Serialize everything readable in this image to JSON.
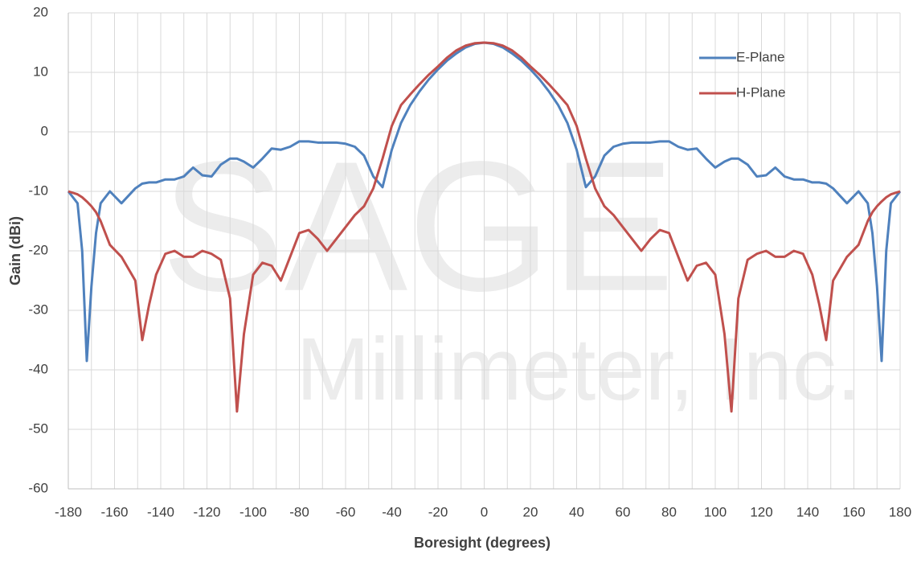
{
  "chart_data": {
    "type": "line",
    "xlabel": "Boresight (degrees)",
    "ylabel": "Gain (dBi)",
    "watermark": [
      "SAGE",
      "Millimeter, Inc."
    ],
    "x": [
      -180,
      -176,
      -174,
      -172,
      -170,
      -168,
      -166,
      -162,
      -157,
      -151,
      -148,
      -145,
      -142,
      -138,
      -134,
      -130,
      -126,
      -122,
      -118,
      -114,
      -110,
      -107,
      -104,
      -100,
      -96,
      -92,
      -88,
      -84,
      -80,
      -76,
      -72,
      -68,
      -64,
      -60,
      -56,
      -52,
      -48,
      -44,
      -40,
      -36,
      -32,
      -28,
      -24,
      -20,
      -16,
      -12,
      -8,
      -4,
      0,
      4,
      8,
      12,
      16,
      20,
      24,
      28,
      32,
      36,
      40,
      44,
      48,
      52,
      56,
      60,
      64,
      68,
      72,
      76,
      80,
      84,
      88,
      92,
      96,
      100,
      104,
      107,
      110,
      114,
      118,
      122,
      126,
      130,
      134,
      138,
      142,
      145,
      148,
      151,
      157,
      162,
      166,
      168,
      170,
      172,
      174,
      176,
      180
    ],
    "series": [
      {
        "name": "E-Plane",
        "color": "#4f81bd",
        "values": [
          -10,
          -12,
          -20,
          -38.5,
          -26,
          -17,
          -12,
          -10,
          -12,
          -9.5,
          -8.7,
          -8.5,
          -8.5,
          -8,
          -8,
          -7.5,
          -6,
          -7.3,
          -7.5,
          -5.5,
          -4.5,
          -4.5,
          -5,
          -6,
          -4.5,
          -2.8,
          -3,
          -2.5,
          -1.6,
          -1.6,
          -1.8,
          -1.8,
          -1.8,
          -2,
          -2.5,
          -4,
          -7.5,
          -9.3,
          -3,
          1.5,
          4.5,
          6.8,
          8.8,
          10.5,
          12,
          13.2,
          14.2,
          14.8,
          15,
          14.8,
          14.2,
          13.2,
          12,
          10.5,
          8.8,
          6.8,
          4.5,
          1.5,
          -3,
          -9.3,
          -7.5,
          -4,
          -2.5,
          -2,
          -1.8,
          -1.8,
          -1.8,
          -1.6,
          -1.6,
          -2.5,
          -3,
          -2.8,
          -4.5,
          -6,
          -5,
          -4.5,
          -4.5,
          -5.5,
          -7.5,
          -7.3,
          -6,
          -7.5,
          -8,
          -8,
          -8.5,
          -8.5,
          -8.7,
          -9.5,
          -12,
          -10,
          -12,
          -17,
          -26,
          -38.5,
          -20,
          -12,
          -10
        ]
      },
      {
        "name": "H-Plane",
        "color": "#c0504d",
        "values": [
          -10,
          -10.5,
          -11,
          -11.7,
          -12.5,
          -13.5,
          -15,
          -19,
          -21,
          -25,
          -35,
          -29,
          -24,
          -20.5,
          -20,
          -21,
          -21,
          -20,
          -20.5,
          -21.5,
          -28,
          -47,
          -34,
          -24,
          -22,
          -22.5,
          -25,
          -21,
          -17,
          -16.5,
          -18,
          -20,
          -18,
          -16,
          -14,
          -12.5,
          -9.5,
          -4.5,
          1,
          4.5,
          6.3,
          8,
          9.6,
          11,
          12.5,
          13.7,
          14.5,
          14.9,
          15,
          14.9,
          14.5,
          13.7,
          12.5,
          11,
          9.6,
          8,
          6.3,
          4.5,
          1,
          -4.5,
          -9.5,
          -12.5,
          -14,
          -16,
          -18,
          -20,
          -18,
          -16.5,
          -17,
          -21,
          -25,
          -22.5,
          -22,
          -24,
          -34,
          -47,
          -28,
          -21.5,
          -20.5,
          -20,
          -21,
          -21,
          -20,
          -20.5,
          -24,
          -29,
          -35,
          -25,
          -21,
          -19,
          -15,
          -13.5,
          -12.5,
          -11.7,
          -11,
          -10.5,
          -10
        ]
      }
    ],
    "xlim": [
      -180,
      180
    ],
    "xticks": [
      -180,
      -160,
      -140,
      -120,
      -100,
      -80,
      -60,
      -40,
      -20,
      0,
      20,
      40,
      60,
      80,
      100,
      120,
      140,
      160,
      180
    ],
    "ylim": [
      -60,
      20
    ],
    "yticks": [
      -60,
      -50,
      -40,
      -30,
      -20,
      -10,
      0,
      10,
      20
    ],
    "grid": true,
    "legend": "upper right"
  }
}
